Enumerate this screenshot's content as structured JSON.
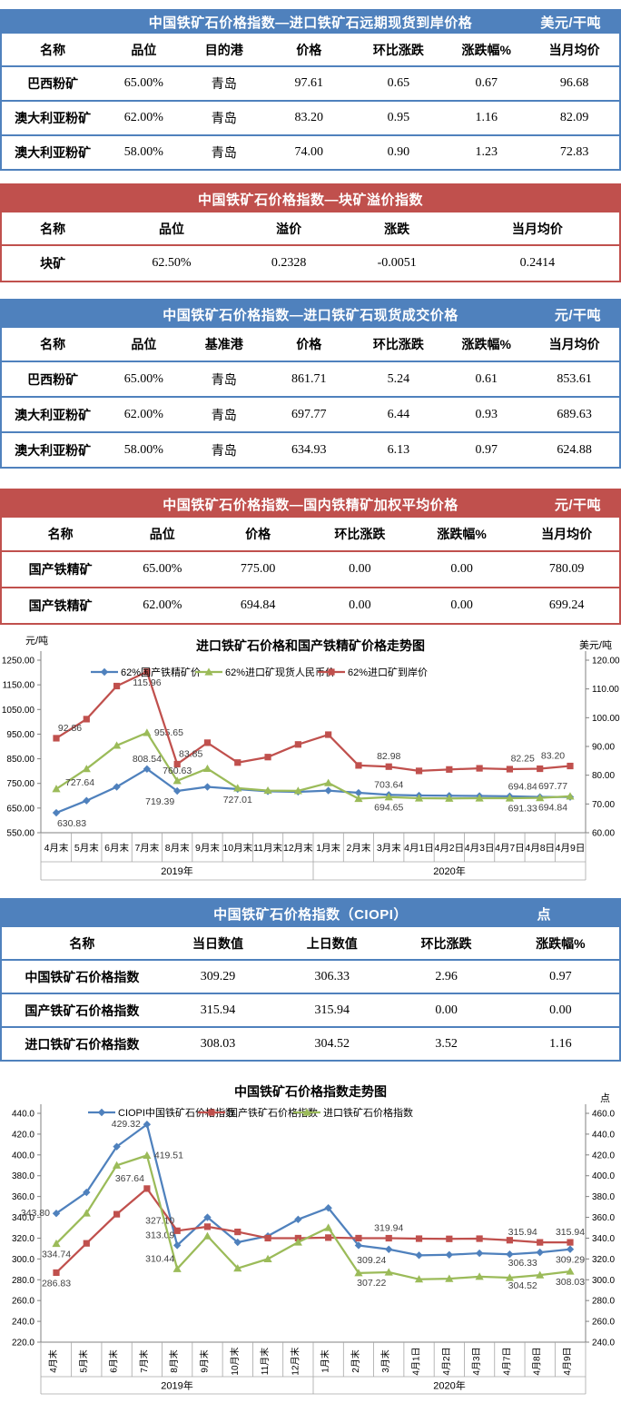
{
  "colors": {
    "blue_theme": "#4f81bd",
    "red_theme": "#c0504d",
    "series_blue": "#4f81bd",
    "series_red": "#c0504d",
    "series_green": "#9bbb59",
    "label_text": "#404040"
  },
  "tables": [
    {
      "theme": "blue",
      "title": "中国铁矿石价格指数—进口铁矿石远期现货到岸价格",
      "unit": "美元/干吨",
      "columns": [
        "名称",
        "品位",
        "目的港",
        "价格",
        "环比涨跌",
        "涨跌幅%",
        "当月均价"
      ],
      "rows": [
        [
          "巴西粉矿",
          "65.00%",
          "青岛",
          "97.61",
          "0.65",
          "0.67",
          "96.68"
        ],
        [
          "澳大利亚粉矿",
          "62.00%",
          "青岛",
          "83.20",
          "0.95",
          "1.16",
          "82.09"
        ],
        [
          "澳大利亚粉矿",
          "58.00%",
          "青岛",
          "74.00",
          "0.90",
          "1.23",
          "72.83"
        ]
      ]
    },
    {
      "theme": "red",
      "title": "中国铁矿石价格指数—块矿溢价指数",
      "unit": "",
      "columns": [
        "名称",
        "品位",
        "溢价",
        "涨跌",
        "当月均价"
      ],
      "rows": [
        [
          "块矿",
          "62.50%",
          "0.2328",
          "-0.0051",
          "0.2414"
        ]
      ]
    },
    {
      "theme": "blue",
      "title": "中国铁矿石价格指数—进口铁矿石现货成交价格",
      "unit": "元/干吨",
      "columns": [
        "名称",
        "品位",
        "基准港",
        "价格",
        "环比涨跌",
        "涨跌幅%",
        "当月均价"
      ],
      "rows": [
        [
          "巴西粉矿",
          "65.00%",
          "青岛",
          "861.71",
          "5.24",
          "0.61",
          "853.61"
        ],
        [
          "澳大利亚粉矿",
          "62.00%",
          "青岛",
          "697.77",
          "6.44",
          "0.93",
          "689.63"
        ],
        [
          "澳大利亚粉矿",
          "58.00%",
          "青岛",
          "634.93",
          "6.13",
          "0.97",
          "624.88"
        ]
      ]
    },
    {
      "theme": "red",
      "title": "中国铁矿石价格指数—国内铁精矿加权平均价格",
      "unit": "元/干吨",
      "columns": [
        "名称",
        "品位",
        "价格",
        "环比涨跌",
        "涨跌幅%",
        "当月均价"
      ],
      "rows": [
        [
          "国产铁精矿",
          "65.00%",
          "775.00",
          "0.00",
          "0.00",
          "780.09"
        ],
        [
          "国产铁精矿",
          "62.00%",
          "694.84",
          "0.00",
          "0.00",
          "699.24"
        ]
      ]
    },
    {
      "theme": "blue",
      "title": "中国铁矿石价格指数（CIOPI）",
      "unit": "点",
      "columns": [
        "名称",
        "当日数值",
        "上日数值",
        "环比涨跌",
        "涨跌幅%"
      ],
      "rows": [
        [
          "中国铁矿石价格指数",
          "309.29",
          "306.33",
          "2.96",
          "0.97"
        ],
        [
          "国产铁矿石价格指数",
          "315.94",
          "315.94",
          "0.00",
          "0.00"
        ],
        [
          "进口铁矿石价格指数",
          "308.03",
          "304.52",
          "3.52",
          "1.16"
        ]
      ]
    }
  ],
  "chart_data": [
    {
      "type": "line",
      "title": "进口铁矿石价格和国产铁精矿价格走势图",
      "left_axis": {
        "label": "元/吨",
        "min": 550,
        "max": 1250,
        "step": 100,
        "decimals": 2
      },
      "right_axis": {
        "label": "美元/吨",
        "min": 60,
        "max": 120,
        "step": 10,
        "decimals": 2
      },
      "grid": false,
      "legend_position": "top",
      "categories": [
        "4月末",
        "5月末",
        "6月末",
        "7月末",
        "8月末",
        "9月末",
        "10月末",
        "11月末",
        "12月末",
        "1月末",
        "2月末",
        "3月末",
        "4月1日",
        "4月2日",
        "4月3日",
        "4月7日",
        "4月8日",
        "4月9日"
      ],
      "year_groups": [
        {
          "label": "2019年",
          "span": 9
        },
        {
          "label": "2020年",
          "span": 9
        }
      ],
      "series": [
        {
          "name": "62%国产铁精矿价",
          "color": "#4f81bd",
          "marker": "diamond",
          "axis": "left",
          "values": [
            630.83,
            680,
            736,
            808.54,
            719.39,
            736,
            727.01,
            718,
            716,
            721,
            712,
            703.64,
            701,
            700,
            699,
            698,
            694.84,
            694.84
          ],
          "labels": [
            {
              "i": 0,
              "t": "630.83",
              "p": "br"
            },
            {
              "i": 3,
              "t": "808.54",
              "p": "a"
            },
            {
              "i": 4,
              "t": "719.39",
              "p": "bl"
            },
            {
              "i": 6,
              "t": "727.01",
              "p": "b"
            },
            {
              "i": 11,
              "t": "703.64",
              "p": "a"
            },
            {
              "i": 16,
              "t": "694.84",
              "p": "al"
            },
            {
              "i": 17,
              "t": "694.84",
              "p": "bl"
            }
          ]
        },
        {
          "name": "62%进口矿现货人民币价",
          "color": "#9bbb59",
          "marker": "triangle",
          "axis": "left",
          "values": [
            727.64,
            809,
            904,
            955.65,
            760.63,
            810,
            731,
            721,
            720,
            752,
            688,
            694.65,
            690,
            689,
            690,
            690,
            691.33,
            697.77
          ],
          "labels": [
            {
              "i": 0,
              "t": "727.64",
              "p": "ra"
            },
            {
              "i": 3,
              "t": "955.65",
              "p": "r"
            },
            {
              "i": 4,
              "t": "760.63",
              "p": "a"
            },
            {
              "i": 11,
              "t": "694.65",
              "p": "b"
            },
            {
              "i": 16,
              "t": "691.33",
              "p": "bl"
            },
            {
              "i": 17,
              "t": "697.77",
              "p": "al"
            }
          ]
        },
        {
          "name": "62%进口矿到岸价",
          "color": "#c0504d",
          "marker": "square",
          "axis": "right",
          "values": [
            92.86,
            99.5,
            111,
            115.96,
            83.85,
            91.3,
            84.4,
            86.3,
            90.7,
            94.1,
            83.4,
            82.98,
            81.5,
            82.0,
            82.4,
            82.1,
            82.25,
            83.2
          ],
          "labels": [
            {
              "i": 0,
              "t": "92.86",
              "p": "ar"
            },
            {
              "i": 3,
              "t": "115.96",
              "p": "b"
            },
            {
              "i": 4,
              "t": "83.85",
              "p": "ar"
            },
            {
              "i": 11,
              "t": "82.98",
              "p": "a"
            },
            {
              "i": 16,
              "t": "82.25",
              "p": "al"
            },
            {
              "i": 17,
              "t": "83.20",
              "p": "al"
            }
          ]
        }
      ]
    },
    {
      "type": "line",
      "title": "中国铁矿石价格指数走势图",
      "left_axis": {
        "label": "",
        "min": 220,
        "max": 440,
        "step": 20,
        "decimals": 1
      },
      "right_axis": {
        "label": "点",
        "min": 240,
        "max": 460,
        "step": 20,
        "decimals": 1
      },
      "grid": false,
      "legend_position": "top",
      "categories": [
        "4月末",
        "5月末",
        "6月末",
        "7月末",
        "8月末",
        "9月末",
        "10月末",
        "11月末",
        "12月末",
        "1月末",
        "2月末",
        "3月末",
        "4月1日",
        "4月2日",
        "4月3日",
        "4月7日",
        "4月8日",
        "4月9日"
      ],
      "year_groups": [
        {
          "label": "2019年",
          "span": 9
        },
        {
          "label": "2020年",
          "span": 9
        }
      ],
      "series": [
        {
          "name": "CIOPI中国铁矿石价格指数",
          "color": "#4f81bd",
          "marker": "diamond",
          "axis": "left",
          "values": [
            343.8,
            364,
            408,
            429.32,
            313.09,
            340,
            316,
            322,
            338,
            349,
            313,
            309.24,
            303.5,
            304,
            305.5,
            304.5,
            306.33,
            309.29
          ],
          "labels": [
            {
              "i": 0,
              "t": "343.80",
              "p": "l"
            },
            {
              "i": 3,
              "t": "429.32",
              "p": "l"
            },
            {
              "i": 4,
              "t": "313.09",
              "p": "al"
            },
            {
              "i": 11,
              "t": "309.24",
              "p": "bl"
            },
            {
              "i": 16,
              "t": "306.33",
              "p": "bl"
            },
            {
              "i": 17,
              "t": "309.29",
              "p": "b"
            }
          ]
        },
        {
          "name": "国产铁矿石价格指数",
          "color": "#c0504d",
          "marker": "square",
          "axis": "left",
          "values": [
            286.83,
            315,
            343,
            367.64,
            327.1,
            331,
            326,
            320,
            320,
            320.5,
            320,
            319.94,
            319.5,
            319.3,
            319.5,
            318,
            315.94,
            315.94
          ],
          "labels": [
            {
              "i": 0,
              "t": "286.83",
              "p": "b"
            },
            {
              "i": 3,
              "t": "367.64",
              "p": "al"
            },
            {
              "i": 4,
              "t": "327.10",
              "p": "al"
            },
            {
              "i": 11,
              "t": "319.94",
              "p": "a"
            },
            {
              "i": 16,
              "t": "315.94",
              "p": "al"
            },
            {
              "i": 17,
              "t": "315.94",
              "p": "a"
            }
          ]
        },
        {
          "name": "进口铁矿石价格指数",
          "color": "#9bbb59",
          "marker": "triangle",
          "axis": "right",
          "values": [
            334.74,
            364,
            410,
            419.51,
            310.44,
            342,
            311,
            320,
            336,
            350,
            306.5,
            307.22,
            300.5,
            301,
            303,
            302,
            304.52,
            308.03
          ],
          "labels": [
            {
              "i": 0,
              "t": "334.74",
              "p": "b"
            },
            {
              "i": 3,
              "t": "419.51",
              "p": "r"
            },
            {
              "i": 4,
              "t": "310.44",
              "p": "al"
            },
            {
              "i": 11,
              "t": "307.22",
              "p": "bl"
            },
            {
              "i": 16,
              "t": "304.52",
              "p": "bl"
            },
            {
              "i": 17,
              "t": "308.03",
              "p": "b"
            }
          ]
        }
      ]
    }
  ]
}
